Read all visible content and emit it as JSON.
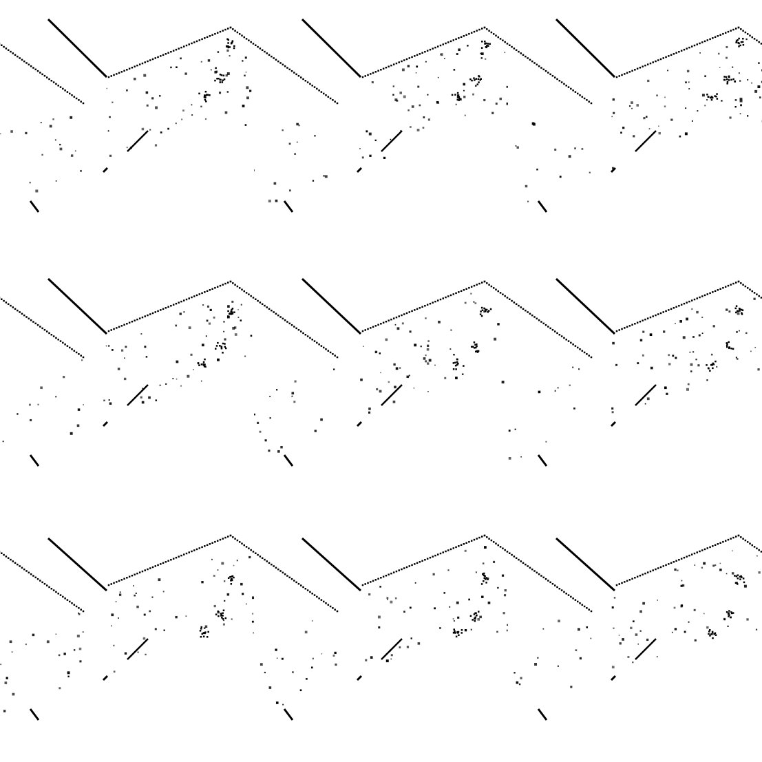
{
  "pattern": {
    "rows": 3,
    "cols": 3,
    "ink_color": "#000000",
    "background_color": "#ffffff"
  }
}
